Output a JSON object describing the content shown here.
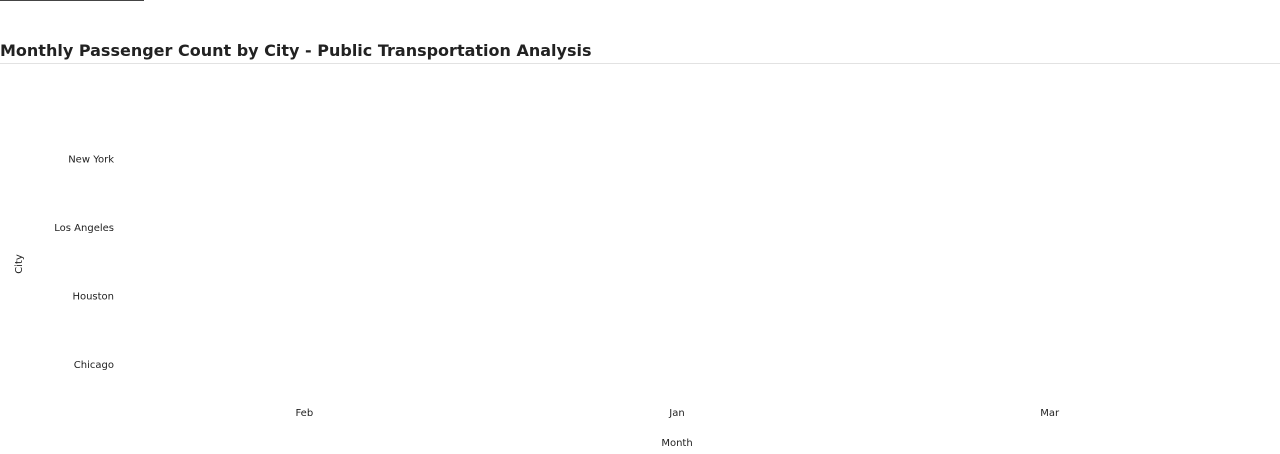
{
  "chart_data": {
    "type": "heatmap",
    "title": "Monthly Passenger Count by City - Public Transportation Analysis",
    "xlabel": "Month",
    "ylabel": "City",
    "x_categories": [
      "Feb",
      "Jan",
      "Mar"
    ],
    "y_categories": [
      "New York",
      "Los Angeles",
      "Houston",
      "Chicago"
    ],
    "grid": false,
    "legend": "none"
  }
}
